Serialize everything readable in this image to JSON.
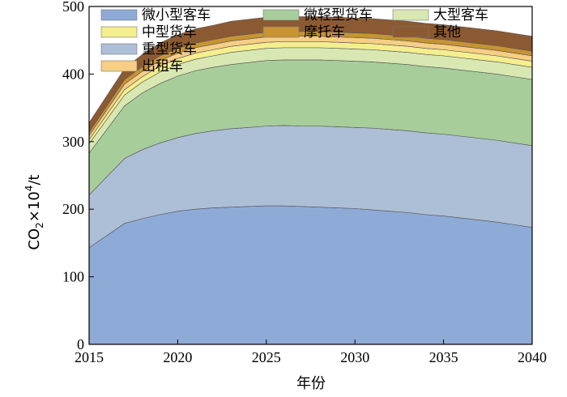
{
  "chart_data": {
    "type": "area",
    "stacked": true,
    "xlabel": "年份",
    "ylabel_main": "CO",
    "ylabel_sub": "2",
    "ylabel_mid": "×10",
    "ylabel_sup": "4",
    "ylabel_tail": "/t",
    "xlim": [
      2015,
      2040
    ],
    "ylim": [
      0,
      500
    ],
    "xticks": [
      2015,
      2020,
      2025,
      2030,
      2035,
      2040
    ],
    "yticks": [
      0,
      100,
      200,
      300,
      400,
      500
    ],
    "legend_position": "top",
    "x": [
      2015,
      2017,
      2018,
      2019,
      2020,
      2021,
      2022,
      2023,
      2024,
      2025,
      2026,
      2027,
      2028,
      2029,
      2030,
      2031,
      2032,
      2033,
      2034,
      2035,
      2036,
      2037,
      2038,
      2039,
      2040
    ],
    "series": [
      {
        "name": "微小型客车",
        "color": "#8eaad7",
        "values": [
          143,
          179,
          186,
          192,
          197,
          200,
          202,
          203,
          204,
          205,
          205,
          204,
          203,
          202,
          201,
          199,
          197,
          195,
          192,
          190,
          187,
          184,
          181,
          177,
          173
        ]
      },
      {
        "name": "重型货车",
        "color": "#adbfd6",
        "values": [
          78,
          96,
          102,
          106,
          109,
          112,
          114,
          116,
          117,
          118,
          119,
          119,
          120,
          120,
          120,
          121,
          121,
          121,
          121,
          121,
          121,
          121,
          121,
          121,
          121
        ]
      },
      {
        "name": "微轻型货车",
        "color": "#a7cd9b",
        "values": [
          62,
          78,
          84,
          88,
          91,
          93,
          94,
          95,
          96,
          97,
          97,
          98,
          98,
          98,
          98,
          98,
          98,
          98,
          98,
          98,
          98,
          98,
          98,
          98,
          98
        ]
      },
      {
        "name": "大型客车",
        "color": "#d9e8b2",
        "values": [
          14,
          16,
          16,
          17,
          17,
          17,
          17,
          18,
          18,
          18,
          18,
          18,
          18,
          18,
          18,
          18,
          18,
          18,
          18,
          18,
          18,
          18,
          18,
          18,
          18
        ]
      },
      {
        "name": "中型货车",
        "color": "#f5ee8e",
        "values": [
          6,
          8,
          8,
          9,
          9,
          9,
          9,
          9,
          9,
          9,
          9,
          9,
          9,
          9,
          9,
          9,
          9,
          9,
          9,
          9,
          9,
          9,
          9,
          9,
          9
        ]
      },
      {
        "name": "出租车",
        "color": "#f6ce84",
        "values": [
          6,
          8,
          8,
          8,
          8,
          8,
          8,
          8,
          8,
          8,
          8,
          8,
          8,
          8,
          8,
          8,
          8,
          8,
          8,
          8,
          8,
          8,
          8,
          8,
          8
        ]
      },
      {
        "name": "摩托车",
        "color": "#c79433",
        "values": [
          5,
          7,
          7,
          7,
          7,
          7,
          7,
          7,
          7,
          7,
          7,
          7,
          7,
          7,
          7,
          7,
          7,
          7,
          7,
          7,
          7,
          7,
          7,
          7,
          7
        ]
      },
      {
        "name": "其他",
        "color": "#8c5a32",
        "values": [
          14,
          16,
          18,
          19,
          20,
          21,
          21,
          22,
          22,
          22,
          22,
          22,
          22,
          22,
          22,
          22,
          22,
          22,
          22,
          22,
          22,
          22,
          22,
          22,
          22
        ]
      }
    ],
    "legend_order": [
      "微小型客车",
      "微轻型货车",
      "大型客车",
      "中型货车",
      "摩托车",
      "其他",
      "重型货车",
      "出租车"
    ]
  }
}
